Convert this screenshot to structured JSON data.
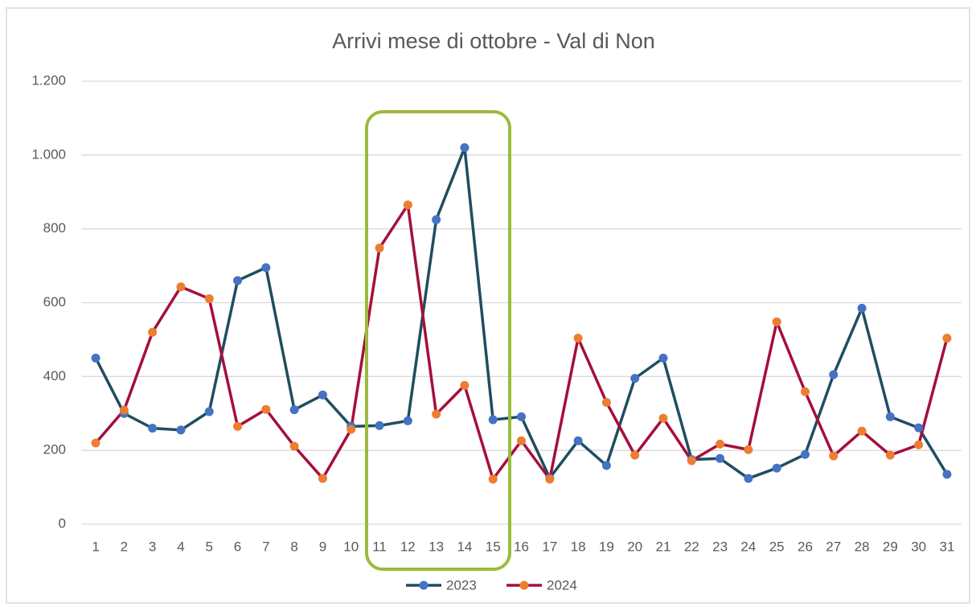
{
  "chart_data": {
    "type": "line",
    "title": "Arrivi mese di ottobre - Val di Non",
    "categories": [
      "1",
      "2",
      "3",
      "4",
      "5",
      "6",
      "7",
      "8",
      "9",
      "10",
      "11",
      "12",
      "13",
      "14",
      "15",
      "16",
      "17",
      "18",
      "19",
      "20",
      "21",
      "22",
      "23",
      "24",
      "25",
      "26",
      "27",
      "28",
      "29",
      "30",
      "31"
    ],
    "series": [
      {
        "name": "2023",
        "color": "#1f4e5f",
        "marker_color": "#4472c4",
        "values": [
          450,
          300,
          260,
          255,
          305,
          660,
          695,
          310,
          350,
          265,
          267,
          280,
          825,
          1020,
          283,
          291,
          125,
          226,
          159,
          395,
          450,
          175,
          178,
          124,
          152,
          189,
          405,
          585,
          291,
          261,
          135
        ]
      },
      {
        "name": "2024",
        "color": "#a50f3c",
        "marker_color": "#ed7d31",
        "values": [
          220,
          309,
          520,
          643,
          611,
          265,
          311,
          211,
          124,
          257,
          748,
          865,
          298,
          376,
          122,
          226,
          122,
          504,
          330,
          187,
          287,
          172,
          217,
          202,
          548,
          359,
          185,
          252,
          187,
          215,
          504
        ]
      }
    ],
    "ylim": [
      0,
      1200
    ],
    "yticks": [
      0,
      200,
      400,
      600,
      800,
      {
        "value": 1000,
        "label": "1.000"
      },
      {
        "value": 1200,
        "label": "1.200"
      }
    ],
    "grid": true,
    "legend": "bottom"
  }
}
